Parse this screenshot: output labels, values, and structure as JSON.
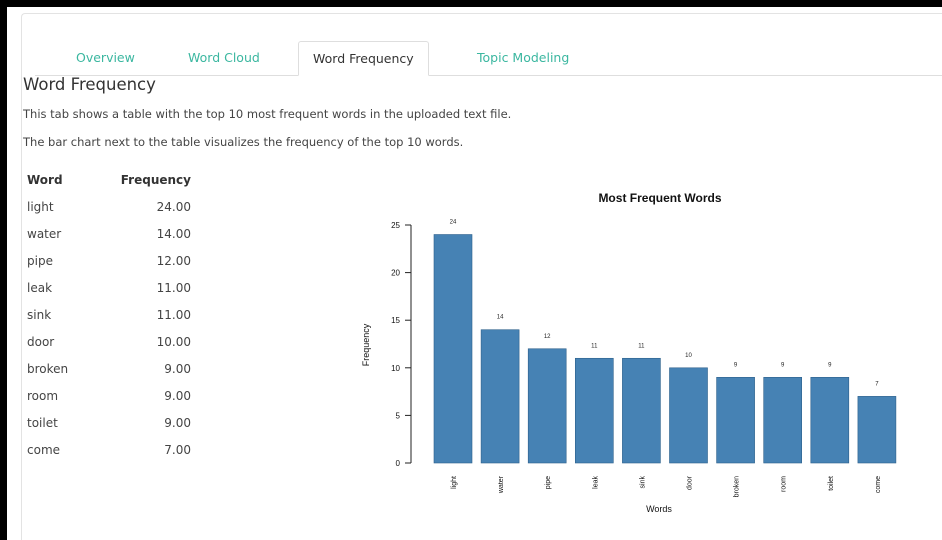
{
  "tabs": [
    {
      "label": "Overview",
      "active": false
    },
    {
      "label": "Word Cloud",
      "active": false
    },
    {
      "label": "Word Frequency",
      "active": true
    },
    {
      "label": "Topic Modeling",
      "active": false
    }
  ],
  "content": {
    "heading": "Word Frequency",
    "desc1": "This tab shows a table with the top 10 most frequent words in the uploaded text file.",
    "desc2": "The bar chart next to the table visualizes the frequency of the top 10 words."
  },
  "table": {
    "headers": [
      "Word",
      "Frequency"
    ],
    "rows": [
      [
        "light",
        "24.00"
      ],
      [
        "water",
        "14.00"
      ],
      [
        "pipe",
        "12.00"
      ],
      [
        "leak",
        "11.00"
      ],
      [
        "sink",
        "11.00"
      ],
      [
        "door",
        "10.00"
      ],
      [
        "broken",
        "9.00"
      ],
      [
        "room",
        "9.00"
      ],
      [
        "toilet",
        "9.00"
      ],
      [
        "come",
        "7.00"
      ]
    ]
  },
  "colors": {
    "bar": "#4682b4",
    "tab_link": "#3bb7a0"
  },
  "chart_data": {
    "type": "bar",
    "title": "Most Frequent Words",
    "xlabel": "Words",
    "ylabel": "Frequency",
    "categories": [
      "light",
      "water",
      "pipe",
      "leak",
      "sink",
      "door",
      "broken",
      "room",
      "toilet",
      "come"
    ],
    "values": [
      24,
      14,
      12,
      11,
      11,
      10,
      9,
      9,
      9,
      7
    ],
    "data_labels": [
      "24",
      "14",
      "12",
      "11",
      "11",
      "10",
      "9",
      "9",
      "9",
      "7"
    ],
    "yticks": [
      0,
      5,
      10,
      15,
      20,
      25
    ],
    "ylim": [
      0,
      25
    ],
    "grid": false
  }
}
